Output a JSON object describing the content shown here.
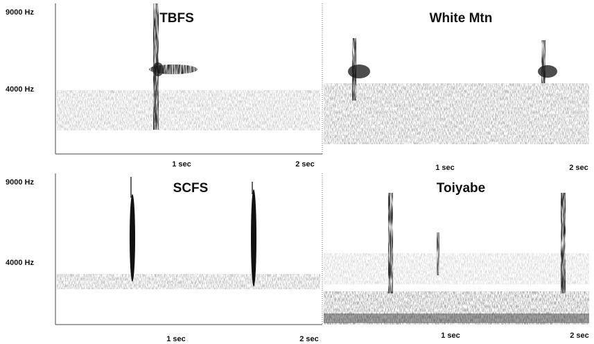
{
  "panels": [
    {
      "title": "TBFS",
      "y_labels": [
        "9000 Hz",
        "4000 Hz"
      ],
      "x_labels": [
        "1 sec",
        "2 sec"
      ]
    },
    {
      "title": "White Mtn",
      "x_labels": [
        "1 sec",
        "2 sec"
      ]
    },
    {
      "title": "SCFS",
      "y_labels": [
        "9000 Hz",
        "4000 Hz"
      ],
      "x_labels": [
        "1 sec",
        "2 sec"
      ]
    },
    {
      "title": "Toiyabe",
      "x_labels": [
        "1 sec",
        "2 sec"
      ]
    }
  ]
}
